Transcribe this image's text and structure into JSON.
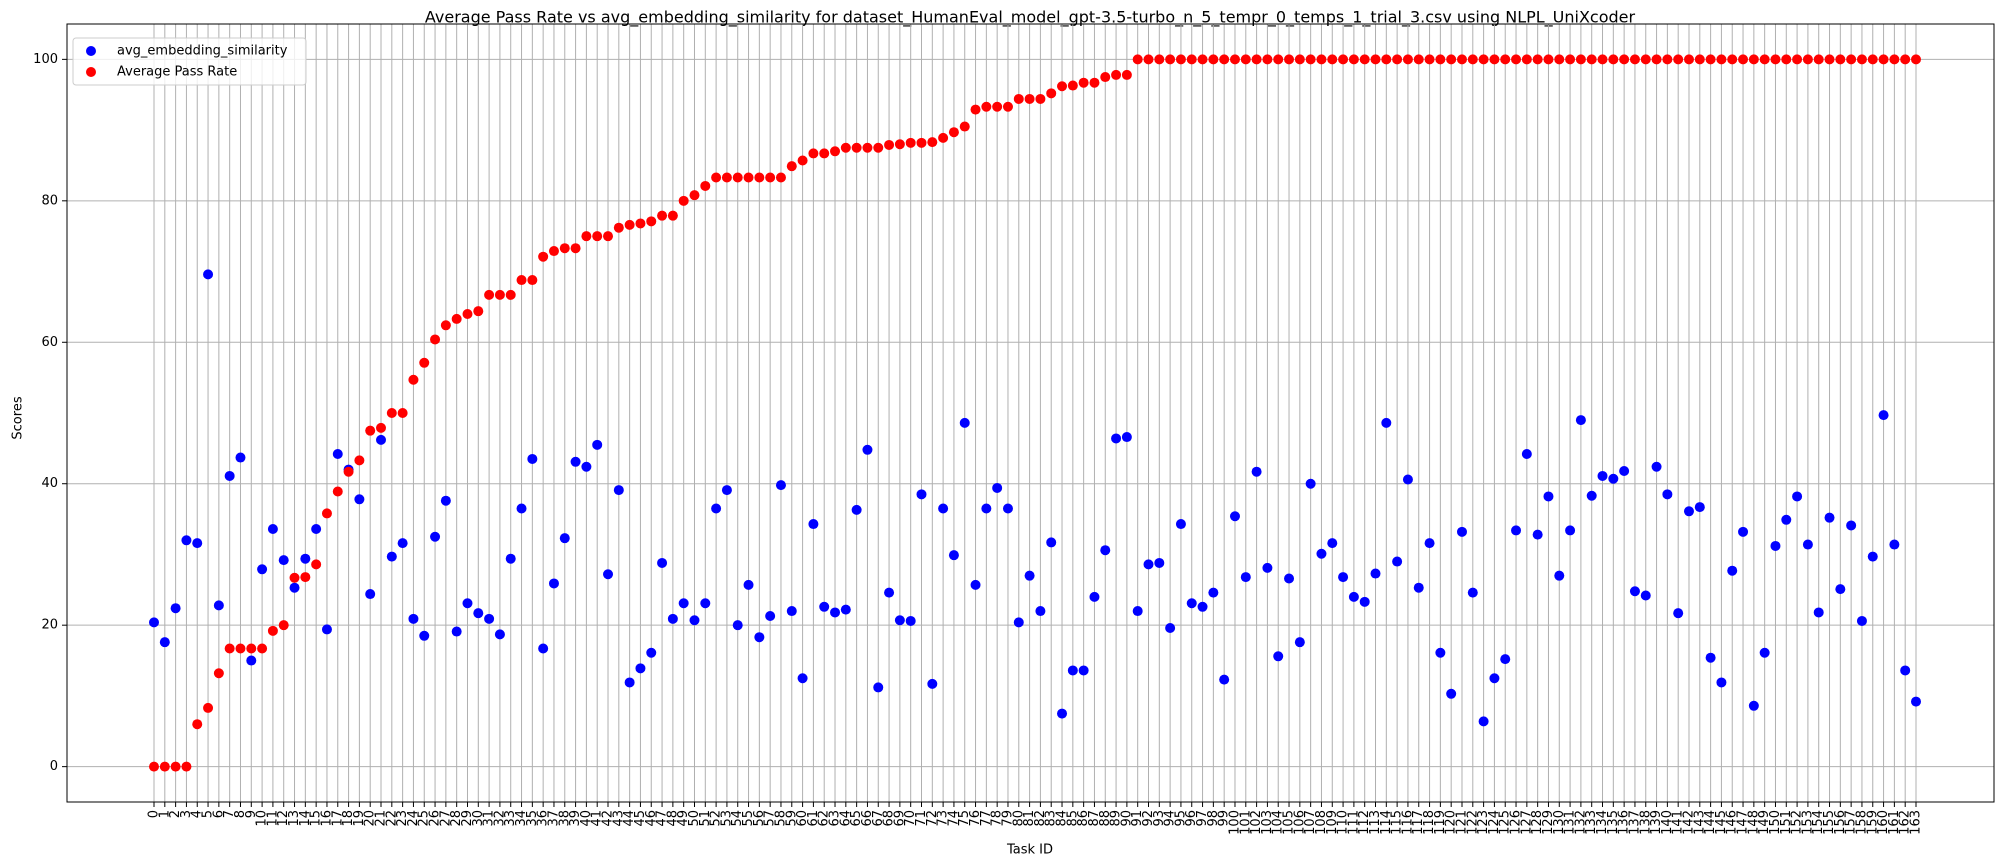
{
  "chart_data": {
    "type": "scatter",
    "title": "Average Pass Rate vs avg_embedding_similarity for dataset_HumanEval_model_gpt-3.5-turbo_n_5_tempr_0_temps_1_trial_3.csv using NLPL_UniXcoder",
    "x_label": "Task ID",
    "y_label": "Scores",
    "categories": [
      "0",
      "1",
      "2",
      "3",
      "4",
      "5",
      "6",
      "7",
      "8",
      "9",
      "10",
      "11",
      "12",
      "13",
      "14",
      "15",
      "16",
      "17",
      "18",
      "19",
      "20",
      "21",
      "22",
      "23",
      "24",
      "25",
      "26",
      "27",
      "28",
      "29",
      "30",
      "31",
      "32",
      "33",
      "34",
      "35",
      "36",
      "37",
      "38",
      "39",
      "40",
      "41",
      "42",
      "43",
      "44",
      "45",
      "46",
      "47",
      "48",
      "49",
      "50",
      "51",
      "52",
      "53",
      "54",
      "55",
      "56",
      "57",
      "58",
      "59",
      "60",
      "61",
      "62",
      "63",
      "64",
      "65",
      "66",
      "67",
      "68",
      "69",
      "70",
      "71",
      "72",
      "73",
      "74",
      "75",
      "76",
      "77",
      "78",
      "79",
      "80",
      "81",
      "82",
      "83",
      "84",
      "85",
      "86",
      "87",
      "88",
      "89",
      "90",
      "91",
      "92",
      "93",
      "94",
      "95",
      "96",
      "97",
      "98",
      "99",
      "100",
      "101",
      "102",
      "103",
      "104",
      "105",
      "106",
      "107",
      "108",
      "109",
      "110",
      "111",
      "112",
      "113",
      "114",
      "115",
      "116",
      "117",
      "118",
      "119",
      "120",
      "121",
      "122",
      "123",
      "124",
      "125",
      "126",
      "127",
      "128",
      "129",
      "130",
      "131",
      "132",
      "133",
      "134",
      "135",
      "136",
      "137",
      "138",
      "139",
      "140",
      "141",
      "142",
      "143",
      "144",
      "145",
      "146",
      "147",
      "148",
      "149",
      "150",
      "151",
      "152",
      "153",
      "154",
      "155",
      "156",
      "157",
      "158",
      "159",
      "160",
      "161",
      "162",
      "163"
    ],
    "series": [
      {
        "name": "avg_embedding_similarity",
        "color": "#0000ff",
        "values": [
          20.4,
          17.6,
          22.4,
          32,
          31.6,
          69.6,
          22.8,
          41.1,
          43.7,
          15,
          27.9,
          33.6,
          29.2,
          25.3,
          29.4,
          33.6,
          19.4,
          44.2,
          42,
          37.8,
          24.4,
          46.2,
          29.7,
          31.6,
          20.9,
          18.5,
          32.5,
          37.6,
          19.1,
          23.1,
          21.7,
          20.9,
          18.7,
          29.4,
          36.5,
          43.5,
          16.7,
          25.9,
          32.3,
          43.1,
          42.4,
          45.5,
          27.2,
          39.1,
          11.9,
          13.9,
          16.1,
          28.8,
          20.9,
          23.1,
          20.7,
          23.1,
          36.5,
          39.1,
          20,
          25.7,
          18.3,
          21.3,
          39.8,
          22,
          12.5,
          34.3,
          22.6,
          21.8,
          22.2,
          36.3,
          44.8,
          11.2,
          24.6,
          20.7,
          20.6,
          38.5,
          11.7,
          36.5,
          29.9,
          48.6,
          25.7,
          36.5,
          39.4,
          36.5,
          20.4,
          27,
          22,
          31.7,
          7.5,
          13.6,
          13.6,
          24,
          30.6,
          46.4,
          46.6,
          22,
          28.6,
          28.8,
          19.6,
          34.3,
          23.1,
          22.6,
          24.6,
          12.3,
          35.4,
          26.8,
          41.7,
          28.1,
          15.6,
          26.6,
          17.6,
          40,
          30.1,
          31.6,
          26.8,
          24,
          23.3,
          27.3,
          48.6,
          29,
          40.6,
          25.3,
          31.6,
          16.1,
          10.3,
          33.2,
          24.6,
          6.4,
          12.5,
          15.2,
          33.4,
          44.2,
          32.8,
          38.2,
          27,
          33.4,
          49,
          38.3,
          41.1,
          40.7,
          41.8,
          24.8,
          24.2,
          42.4,
          38.5,
          21.7,
          36.1,
          36.7,
          15.4,
          11.9,
          27.7,
          33.2,
          8.6,
          16.1,
          31.2,
          34.9,
          38.2,
          31.4,
          21.8,
          35.2,
          25.1,
          34.1,
          20.6,
          29.7,
          49.7,
          31.4,
          13.6,
          9.2
        ]
      },
      {
        "name": "Average Pass Rate",
        "color": "#ff0000",
        "values": [
          0,
          0,
          0,
          0,
          6,
          8.3,
          13.2,
          16.7,
          16.7,
          16.7,
          16.7,
          19.2,
          20,
          26.7,
          26.8,
          28.6,
          35.8,
          38.9,
          41.7,
          43.3,
          47.5,
          47.9,
          50,
          50,
          54.7,
          57.1,
          60.4,
          62.4,
          63.3,
          64,
          64.4,
          66.7,
          66.7,
          66.7,
          68.8,
          68.8,
          72.1,
          72.9,
          73.3,
          73.3,
          75,
          75,
          75,
          76.2,
          76.6,
          76.8,
          77.1,
          77.9,
          77.9,
          80,
          80.8,
          82.1,
          83.3,
          83.3,
          83.3,
          83.3,
          83.3,
          83.3,
          83.3,
          84.9,
          85.7,
          86.7,
          86.7,
          87,
          87.5,
          87.5,
          87.5,
          87.5,
          87.9,
          88,
          88.2,
          88.2,
          88.3,
          88.9,
          89.7,
          90.5,
          92.9,
          93.3,
          93.3,
          93.3,
          94.4,
          94.4,
          94.4,
          95.2,
          96.2,
          96.3,
          96.7,
          96.7,
          97.5,
          97.8,
          97.8,
          100,
          100,
          100,
          100,
          100,
          100,
          100,
          100,
          100,
          100,
          100,
          100,
          100,
          100,
          100,
          100,
          100,
          100,
          100,
          100,
          100,
          100,
          100,
          100,
          100,
          100,
          100,
          100,
          100,
          100,
          100,
          100,
          100,
          100,
          100,
          100,
          100,
          100,
          100,
          100,
          100,
          100,
          100,
          100,
          100,
          100,
          100,
          100,
          100,
          100,
          100,
          100,
          100,
          100,
          100,
          100,
          100,
          100,
          100,
          100,
          100,
          100,
          100,
          100,
          100,
          100,
          100,
          100,
          100,
          100,
          100,
          100,
          100
        ]
      }
    ],
    "ylim": [
      -5,
      105
    ],
    "yticks": [
      0,
      20,
      40,
      60,
      80,
      100
    ],
    "grid": true,
    "legend": "upper left"
  }
}
